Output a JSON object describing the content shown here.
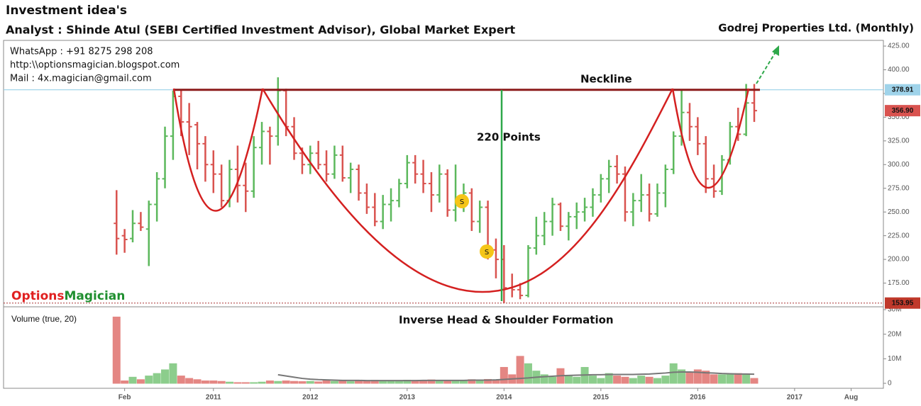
{
  "header": {
    "title": "Investment idea's",
    "analyst": "Analyst : Shinde Atul (SEBI Certified Investment Advisor), Global Market Expert"
  },
  "contact": [
    "WhatsApp : +91 8275 298 208",
    "http:\\\\optionsmagician.blogspot.com",
    "Mail : 4x.magician@gmail.com"
  ],
  "brand": [
    "Options",
    "Magician"
  ],
  "chart_data": {
    "type": "ohlc",
    "title": "Godrej Properties Ltd. (Monthly)",
    "annotations": [
      "Neckline",
      "220  Points",
      "Inverse Head & Shoulder Formation"
    ],
    "signals": [
      "S",
      "S"
    ],
    "colors": {
      "up": "#5cb85c",
      "down": "#d9534f"
    },
    "x": [
      "2010-01",
      "2010-02",
      "2010-03",
      "2010-04",
      "2010-05",
      "2010-06",
      "2010-07",
      "2010-08",
      "2010-09",
      "2010-10",
      "2010-11",
      "2010-12",
      "2011-01",
      "2011-02",
      "2011-03",
      "2011-04",
      "2011-05",
      "2011-06",
      "2011-07",
      "2011-08",
      "2011-09",
      "2011-10",
      "2011-11",
      "2011-12",
      "2012-01",
      "2012-02",
      "2012-03",
      "2012-04",
      "2012-05",
      "2012-06",
      "2012-07",
      "2012-08",
      "2012-09",
      "2012-10",
      "2012-11",
      "2012-12",
      "2013-01",
      "2013-02",
      "2013-03",
      "2013-04",
      "2013-05",
      "2013-06",
      "2013-07",
      "2013-08",
      "2013-09",
      "2013-10",
      "2013-11",
      "2013-12",
      "2014-01",
      "2014-02",
      "2014-03",
      "2014-04",
      "2014-05",
      "2014-06",
      "2014-07",
      "2014-08",
      "2014-09",
      "2014-10",
      "2014-11",
      "2014-12",
      "2015-01",
      "2015-02",
      "2015-03",
      "2015-04",
      "2015-05",
      "2015-06",
      "2015-07",
      "2015-08",
      "2015-09",
      "2015-10",
      "2015-11",
      "2015-12",
      "2016-01",
      "2016-02",
      "2016-03",
      "2016-04",
      "2016-05",
      "2016-06",
      "2016-07",
      "2016-08"
    ],
    "open": [
      238,
      225,
      222,
      238,
      232,
      258,
      285,
      330,
      372,
      345,
      342,
      322,
      300,
      290,
      262,
      295,
      278,
      272,
      318,
      335,
      330,
      378,
      340,
      312,
      300,
      312,
      300,
      290,
      310,
      286,
      295,
      270,
      255,
      240,
      258,
      262,
      280,
      302,
      290,
      280,
      268,
      290,
      252,
      258,
      270,
      240,
      255,
      210,
      200,
      170,
      168,
      162,
      212,
      225,
      240,
      258,
      235,
      245,
      250,
      255,
      268,
      285,
      298,
      290,
      250,
      262,
      268,
      248,
      270,
      295,
      330,
      355,
      340,
      322,
      285,
      272,
      305,
      340,
      332,
      365
    ],
    "high": [
      273,
      232,
      252,
      250,
      262,
      292,
      340,
      378,
      378,
      365,
      345,
      330,
      315,
      300,
      305,
      320,
      302,
      330,
      345,
      340,
      392,
      380,
      350,
      318,
      320,
      325,
      315,
      320,
      320,
      302,
      300,
      280,
      270,
      268,
      275,
      285,
      310,
      310,
      305,
      292,
      300,
      295,
      300,
      280,
      275,
      262,
      262,
      222,
      215,
      185,
      175,
      215,
      245,
      250,
      265,
      260,
      250,
      260,
      265,
      275,
      290,
      305,
      310,
      298,
      270,
      290,
      280,
      280,
      300,
      335,
      378,
      365,
      350,
      330,
      300,
      310,
      345,
      360,
      385,
      385
    ],
    "low": [
      205,
      207,
      218,
      230,
      193,
      240,
      275,
      305,
      330,
      310,
      295,
      282,
      270,
      255,
      255,
      260,
      250,
      265,
      300,
      300,
      320,
      330,
      305,
      290,
      290,
      295,
      282,
      285,
      282,
      270,
      262,
      248,
      235,
      232,
      240,
      255,
      275,
      280,
      270,
      250,
      260,
      245,
      240,
      250,
      230,
      228,
      200,
      180,
      154,
      160,
      158,
      160,
      205,
      215,
      225,
      230,
      220,
      232,
      240,
      245,
      260,
      270,
      280,
      240,
      235,
      250,
      240,
      245,
      255,
      290,
      320,
      325,
      310,
      270,
      265,
      268,
      300,
      325,
      330,
      345
    ],
    "close": [
      222,
      221,
      238,
      234,
      258,
      285,
      330,
      372,
      345,
      340,
      322,
      300,
      290,
      262,
      295,
      278,
      272,
      318,
      335,
      330,
      378,
      340,
      312,
      300,
      312,
      300,
      290,
      310,
      286,
      295,
      270,
      255,
      240,
      258,
      262,
      280,
      302,
      290,
      280,
      268,
      290,
      252,
      258,
      270,
      240,
      255,
      210,
      200,
      170,
      168,
      162,
      212,
      225,
      240,
      258,
      235,
      245,
      250,
      255,
      268,
      285,
      298,
      290,
      250,
      262,
      268,
      248,
      270,
      295,
      330,
      355,
      340,
      322,
      285,
      272,
      305,
      340,
      332,
      365,
      356.9
    ],
    "xlim": [
      "2008-11",
      "2017-12"
    ],
    "xticks": [
      {
        "value": "2010-02",
        "label": "Feb"
      },
      {
        "value": "2011-01",
        "label": "2011"
      },
      {
        "value": "2012-01",
        "label": "2012"
      },
      {
        "value": "2013-01",
        "label": "2013"
      },
      {
        "value": "2014-01",
        "label": "2014"
      },
      {
        "value": "2015-01",
        "label": "2015"
      },
      {
        "value": "2016-01",
        "label": "2016"
      },
      {
        "value": "2017-01",
        "label": "2017"
      },
      {
        "value": "2017-08",
        "label": "Aug"
      }
    ],
    "ylim": [
      150,
      431
    ],
    "yticks": [
      {
        "value": 175,
        "label": "175.00"
      },
      {
        "value": 200,
        "label": "200.00"
      },
      {
        "value": 225,
        "label": "225.00"
      },
      {
        "value": 250,
        "label": "250.00"
      },
      {
        "value": 275,
        "label": "275.00"
      },
      {
        "value": 300,
        "label": "300.00"
      },
      {
        "value": 325,
        "label": "325.00"
      },
      {
        "value": 350,
        "label": "350.00"
      },
      {
        "value": 375,
        "label": "375.00"
      },
      {
        "value": 400,
        "label": "400.00"
      },
      {
        "value": 425,
        "label": "425.00"
      }
    ],
    "price_labels": [
      {
        "value": 378.91,
        "label": "378.91",
        "color": "#9fd3ea",
        "text_color": "#111111"
      },
      {
        "value": 356.9,
        "label": "356.90",
        "color": "#d9534f",
        "text_color": "#ffffff"
      },
      {
        "value": 153.95,
        "label": "153.95",
        "color": "#c0392b",
        "text_color": "#ffffff"
      }
    ],
    "volume_title": "Volume (true, 20)",
    "volume": [
      27,
      1,
      2.5,
      1.5,
      3,
      4,
      5.5,
      8,
      3,
      2,
      1.5,
      1,
      1,
      0.8,
      0.5,
      0.3,
      0.3,
      0.3,
      0.5,
      1,
      0.8,
      1,
      0.8,
      0.7,
      0.8,
      0.6,
      1,
      0.8,
      0.9,
      0.7,
      1,
      0.8,
      1.2,
      0.9,
      1,
      1.1,
      1.3,
      1.2,
      1,
      1.4,
      1.2,
      1,
      1.3,
      1.1,
      1.5,
      1.2,
      1.6,
      1.4,
      6.5,
      3.5,
      11,
      8,
      5,
      3.5,
      2.5,
      6,
      3,
      2.5,
      6.5,
      3,
      2,
      4,
      3,
      2.5,
      2,
      3,
      2.5,
      2,
      3,
      8,
      5.5,
      4.5,
      5.5,
      5,
      3.5,
      3.5,
      4,
      4,
      3.5,
      2
    ],
    "volume_ma": [
      null,
      null,
      null,
      null,
      null,
      null,
      null,
      null,
      null,
      null,
      null,
      null,
      null,
      null,
      null,
      null,
      null,
      null,
      null,
      null,
      3.5,
      3,
      2.5,
      2,
      1.7,
      1.5,
      1.4,
      1.3,
      1.2,
      1.2,
      1.2,
      1.1,
      1.1,
      1.1,
      1.1,
      1.1,
      1.1,
      1.1,
      1.2,
      1.2,
      1.2,
      1.2,
      1.2,
      1.2,
      1.3,
      1.3,
      1.3,
      1.4,
      1.6,
      1.8,
      2,
      2.2,
      2.5,
      2.7,
      2.9,
      3.1,
      3.2,
      3.3,
      3.4,
      3.5,
      3.5,
      3.6,
      3.6,
      3.6,
      3.6,
      3.7,
      3.8,
      4,
      4.2,
      4.5,
      4.6,
      4.6,
      4.5,
      4.3,
      4.2,
      4,
      3.9,
      3.8,
      3.8,
      3.7
    ],
    "volume_ylim": [
      0,
      30
    ],
    "volume_yticks": [
      0,
      {
        "value": 10,
        "label": "10M"
      },
      {
        "value": 20,
        "label": "20M"
      },
      {
        "value": 30,
        "label": "30M"
      }
    ]
  }
}
